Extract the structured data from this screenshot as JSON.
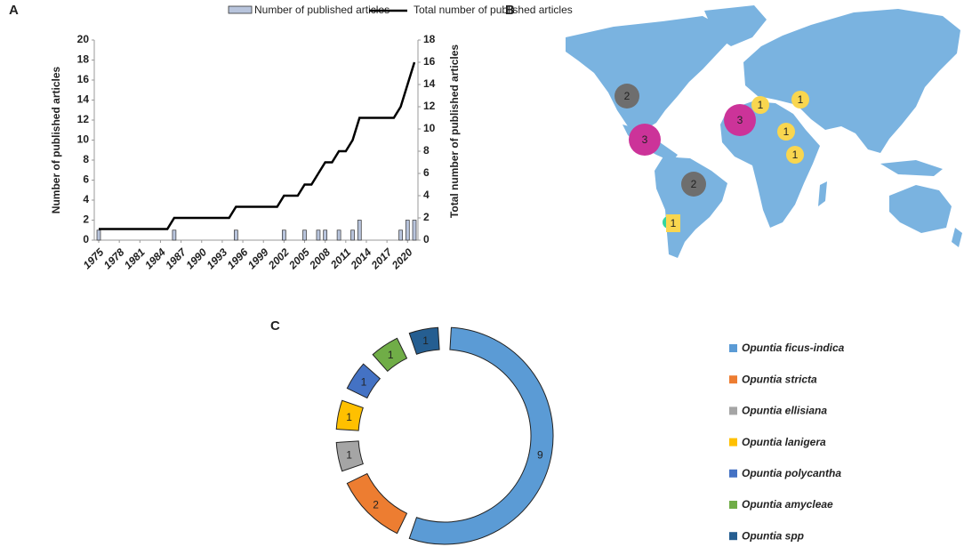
{
  "chart_data": [
    {
      "panel": "A",
      "type": "combo",
      "x": [
        1975,
        1976,
        1977,
        1978,
        1979,
        1980,
        1981,
        1982,
        1983,
        1984,
        1985,
        1986,
        1987,
        1988,
        1989,
        1990,
        1991,
        1992,
        1993,
        1994,
        1995,
        1996,
        1997,
        1998,
        1999,
        2000,
        2001,
        2002,
        2003,
        2004,
        2005,
        2006,
        2007,
        2008,
        2009,
        2010,
        2011,
        2012,
        2013,
        2014,
        2015,
        2016,
        2017,
        2018,
        2019,
        2020,
        2021
      ],
      "series": [
        {
          "name": "Number of published articles",
          "type": "bar",
          "color": "#b8c4dc",
          "x": [
            1975,
            1986,
            1995,
            2002,
            2005,
            2007,
            2008,
            2010,
            2012,
            2013,
            2019,
            2020,
            2021
          ],
          "values": [
            1,
            1,
            1,
            1,
            1,
            1,
            1,
            1,
            1,
            2,
            1,
            2,
            2
          ]
        },
        {
          "name": "Total number of published articles",
          "type": "line",
          "color": "#000000",
          "axis": "y2",
          "values": [
            1,
            1,
            1,
            1,
            1,
            1,
            1,
            1,
            1,
            1,
            1,
            2,
            2,
            2,
            2,
            2,
            2,
            2,
            2,
            2,
            3,
            3,
            3,
            3,
            3,
            3,
            3,
            4,
            4,
            4,
            5,
            5,
            6,
            7,
            7,
            8,
            8,
            9,
            11,
            11,
            11,
            11,
            11,
            11,
            12,
            14,
            16
          ]
        }
      ],
      "ylabel": "Number of published articles",
      "y2label": "Total number of published articles",
      "xlim": [
        1975,
        2021
      ],
      "xticks": [
        1975,
        1978,
        1981,
        1984,
        1987,
        1990,
        1993,
        1996,
        1999,
        2002,
        2005,
        2008,
        2011,
        2014,
        2017,
        2020
      ],
      "ylim": [
        0,
        20
      ],
      "yticks": [
        0,
        2,
        4,
        6,
        8,
        10,
        12,
        14,
        16,
        18,
        20
      ],
      "y2lim": [
        0,
        18
      ],
      "y2ticks": [
        0,
        2,
        4,
        6,
        8,
        10,
        12,
        14,
        16,
        18
      ]
    },
    {
      "panel": "B",
      "type": "bubble-map",
      "values": [
        2,
        1,
        1,
        3,
        3,
        1,
        1,
        2,
        1
      ],
      "colors": [
        "#6e6e6e",
        "#f9d64f",
        "#f9d64f",
        "#cc3399",
        "#cc3399",
        "#f9d64f",
        "#f9d64f",
        "#6e6e6e",
        "#f9d64f"
      ]
    },
    {
      "panel": "C",
      "type": "donut",
      "categories": [
        "Opuntia ficus-indica",
        "Opuntia stricta",
        "Opuntia ellisiana",
        "Opuntia lanigera",
        "Opuntia polycantha",
        "Opuntia amycleae",
        "Opuntia spp"
      ],
      "values": [
        9,
        2,
        1,
        1,
        1,
        1,
        1
      ],
      "colors": [
        "#5b9bd5",
        "#ed7d31",
        "#a5a5a5",
        "#ffc000",
        "#4472c4",
        "#70ad47",
        "#255e91"
      ]
    }
  ]
}
